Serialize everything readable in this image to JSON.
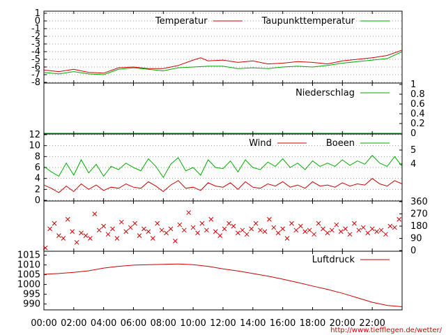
{
  "colors": {
    "red": "#cc0000",
    "green": "#00aa00",
    "grid": "#999999",
    "url": "#cc0000"
  },
  "footer": {
    "url": "http://www.tiefflegen.de/wetter/"
  },
  "x_axis": {
    "labels": [
      "00:00",
      "02:00",
      "04:00",
      "06:00",
      "08:00",
      "10:00",
      "12:00",
      "14:00",
      "16:00",
      "18:00",
      "20:00",
      "22:00"
    ]
  },
  "chart_data": [
    {
      "type": "line",
      "panel": "temperature",
      "xlim": [
        0,
        24
      ],
      "ylim": [
        -8,
        1
      ],
      "yticks": [
        1,
        0,
        -1,
        -2,
        -3,
        -4,
        -5,
        -6,
        -7,
        -8
      ],
      "grid": true,
      "legend_position": "top-right",
      "series": [
        {
          "name": "Temperatur",
          "color": "#cc0000",
          "x": [
            0,
            1,
            2,
            3,
            4,
            5,
            6,
            7,
            8,
            9,
            10,
            10.5,
            11,
            12,
            13,
            14,
            15,
            16,
            17,
            18,
            19,
            20,
            21,
            22,
            23,
            24
          ],
          "y": [
            -6.4,
            -6.6,
            -6.3,
            -6.7,
            -6.8,
            -6.1,
            -6.0,
            -6.2,
            -6.2,
            -5.8,
            -5.1,
            -4.8,
            -5.2,
            -5.1,
            -5.4,
            -5.2,
            -5.6,
            -5.5,
            -5.3,
            -5.4,
            -5.6,
            -5.2,
            -5.0,
            -4.8,
            -4.5,
            -3.8
          ]
        },
        {
          "name": "Taupunkttemperatur",
          "color": "#00aa00",
          "x": [
            0,
            1,
            2,
            3,
            4,
            5,
            6,
            7,
            8,
            9,
            10,
            11,
            12,
            13,
            14,
            15,
            16,
            17,
            18,
            19,
            20,
            21,
            22,
            23,
            24
          ],
          "y": [
            -6.7,
            -6.9,
            -6.6,
            -6.9,
            -7.0,
            -6.3,
            -6.1,
            -6.3,
            -6.5,
            -6.1,
            -6.0,
            -5.9,
            -5.9,
            -6.2,
            -6.1,
            -6.2,
            -6.0,
            -5.9,
            -6.0,
            -5.8,
            -5.5,
            -5.3,
            -5.1,
            -4.9,
            -4.0
          ]
        }
      ]
    },
    {
      "type": "line",
      "panel": "precipitation",
      "xlim": [
        0,
        24
      ],
      "ylim": [
        0,
        1
      ],
      "yticks": [
        1,
        0.8,
        0.6,
        0.4,
        0.2,
        0
      ],
      "grid": false,
      "legend_position": "top-right",
      "series": [
        {
          "name": "Niederschlag",
          "color": "#00aa00",
          "x": [
            0,
            24
          ],
          "y": [
            0,
            0
          ]
        }
      ]
    },
    {
      "type": "line",
      "panel": "wind",
      "xlim": [
        0,
        24
      ],
      "ylim": [
        0,
        12
      ],
      "yticks": [
        12,
        10,
        8,
        6,
        4,
        2,
        0
      ],
      "right_ticks": [
        5,
        4
      ],
      "grid": true,
      "legend_position": "top-right",
      "series": [
        {
          "name": "Wind",
          "color": "#cc0000",
          "x": [
            0,
            0.5,
            1,
            1.5,
            2,
            2.5,
            3,
            3.5,
            4,
            4.5,
            5,
            5.5,
            6,
            6.5,
            7,
            7.5,
            8,
            8.5,
            9,
            9.5,
            10,
            10.5,
            11,
            11.5,
            12,
            12.5,
            13,
            13.5,
            14,
            14.5,
            15,
            15.5,
            16,
            16.5,
            17,
            17.5,
            18,
            18.5,
            19,
            19.5,
            20,
            20.5,
            21,
            21.5,
            22,
            22.5,
            23,
            23.5,
            24
          ],
          "y": [
            2.8,
            2.2,
            1.4,
            2.6,
            1.6,
            3.0,
            2.0,
            2.8,
            1.8,
            2.4,
            2.2,
            3.0,
            2.4,
            2.2,
            3.4,
            2.6,
            1.6,
            2.8,
            3.6,
            2.2,
            2.4,
            1.8,
            3.2,
            2.6,
            2.4,
            3.2,
            2.0,
            3.4,
            2.4,
            2.2,
            3.0,
            2.6,
            3.4,
            2.4,
            2.8,
            2.2,
            3.4,
            2.6,
            2.8,
            2.4,
            3.2,
            2.6,
            3.0,
            2.8,
            4.0,
            3.0,
            2.6,
            3.6,
            3.0
          ]
        },
        {
          "name": "Boeen",
          "color": "#00aa00",
          "x": [
            0,
            0.5,
            1,
            1.5,
            2,
            2.5,
            3,
            3.5,
            4,
            4.5,
            5,
            5.5,
            6,
            6.5,
            7,
            7.5,
            8,
            8.5,
            9,
            9.5,
            10,
            10.5,
            11,
            11.5,
            12,
            12.5,
            13,
            13.5,
            14,
            14.5,
            15,
            15.5,
            16,
            16.5,
            17,
            17.5,
            18,
            18.5,
            19,
            19.5,
            20,
            20.5,
            21,
            21.5,
            22,
            22.5,
            23,
            23.5,
            24
          ],
          "y": [
            6.2,
            5.2,
            4.4,
            6.8,
            4.6,
            7.4,
            5.0,
            6.6,
            4.4,
            6.2,
            5.6,
            6.8,
            6.0,
            5.4,
            7.6,
            6.2,
            4.2,
            6.6,
            7.8,
            5.4,
            6.0,
            4.6,
            7.4,
            6.0,
            5.8,
            7.2,
            5.2,
            7.4,
            6.0,
            5.6,
            7.0,
            6.2,
            7.6,
            6.0,
            6.8,
            5.6,
            7.2,
            6.2,
            6.8,
            6.2,
            7.4,
            6.4,
            7.2,
            6.6,
            8.2,
            6.8,
            6.2,
            8.0,
            6.2
          ]
        }
      ]
    },
    {
      "type": "scatter",
      "panel": "wind_direction",
      "xlim": [
        0,
        24
      ],
      "ylim": [
        0,
        360
      ],
      "right_ticks": [
        360,
        270,
        180,
        90,
        0
      ],
      "grid": false,
      "series": [
        {
          "name": "",
          "color": "#cc0000",
          "x": [
            0.1,
            0.4,
            0.7,
            1.0,
            1.3,
            1.6,
            1.9,
            2.2,
            2.5,
            2.8,
            3.1,
            3.4,
            3.7,
            4.0,
            4.3,
            4.6,
            4.9,
            5.2,
            5.5,
            5.8,
            6.1,
            6.4,
            6.7,
            7.0,
            7.3,
            7.6,
            7.9,
            8.2,
            8.5,
            8.8,
            9.1,
            9.4,
            9.7,
            10.0,
            10.3,
            10.6,
            10.9,
            11.2,
            11.5,
            11.8,
            12.1,
            12.4,
            12.7,
            13.0,
            13.3,
            13.6,
            13.9,
            14.2,
            14.5,
            14.8,
            15.1,
            15.4,
            15.7,
            16.0,
            16.3,
            16.6,
            16.9,
            17.2,
            17.5,
            17.8,
            18.1,
            18.4,
            18.7,
            19.0,
            19.3,
            19.6,
            19.9,
            20.2,
            20.5,
            20.8,
            21.1,
            21.4,
            21.7,
            22.0,
            22.3,
            22.6,
            22.9,
            23.2,
            23.5,
            23.8
          ],
          "y": [
            20,
            160,
            200,
            110,
            90,
            230,
            140,
            60,
            130,
            110,
            90,
            270,
            150,
            180,
            120,
            160,
            90,
            210,
            140,
            170,
            200,
            110,
            160,
            140,
            90,
            200,
            150,
            130,
            160,
            70,
            190,
            150,
            280,
            170,
            130,
            200,
            150,
            230,
            140,
            110,
            160,
            200,
            180,
            130,
            150,
            120,
            160,
            200,
            150,
            140,
            230,
            170,
            130,
            160,
            90,
            200,
            150,
            180,
            140,
            150,
            120,
            200,
            160,
            130,
            150,
            190,
            140,
            160,
            120,
            200,
            150,
            170,
            130,
            160,
            140,
            150,
            120,
            180,
            170,
            230
          ]
        }
      ]
    },
    {
      "type": "line",
      "panel": "pressure",
      "xlim": [
        0,
        24
      ],
      "ylim": [
        987,
        1017
      ],
      "yticks": [
        1015,
        1010,
        1005,
        1000,
        995,
        990
      ],
      "grid": false,
      "legend_position": "top-right",
      "series": [
        {
          "name": "Luftdruck",
          "color": "#cc0000",
          "x": [
            0,
            1,
            2,
            3,
            4,
            5,
            6,
            7,
            8,
            9,
            10,
            11,
            12,
            13,
            14,
            15,
            16,
            17,
            18,
            19,
            20,
            21,
            22,
            23,
            24
          ],
          "y": [
            1005.2,
            1005.6,
            1006.2,
            1007.0,
            1008.4,
            1009.3,
            1009.9,
            1010.1,
            1010.3,
            1010.5,
            1010.1,
            1009.3,
            1008.0,
            1006.9,
            1005.6,
            1004.3,
            1002.7,
            1001.0,
            999.2,
            997.5,
            995.5,
            993.2,
            990.9,
            989.3,
            988.6
          ]
        }
      ]
    }
  ]
}
